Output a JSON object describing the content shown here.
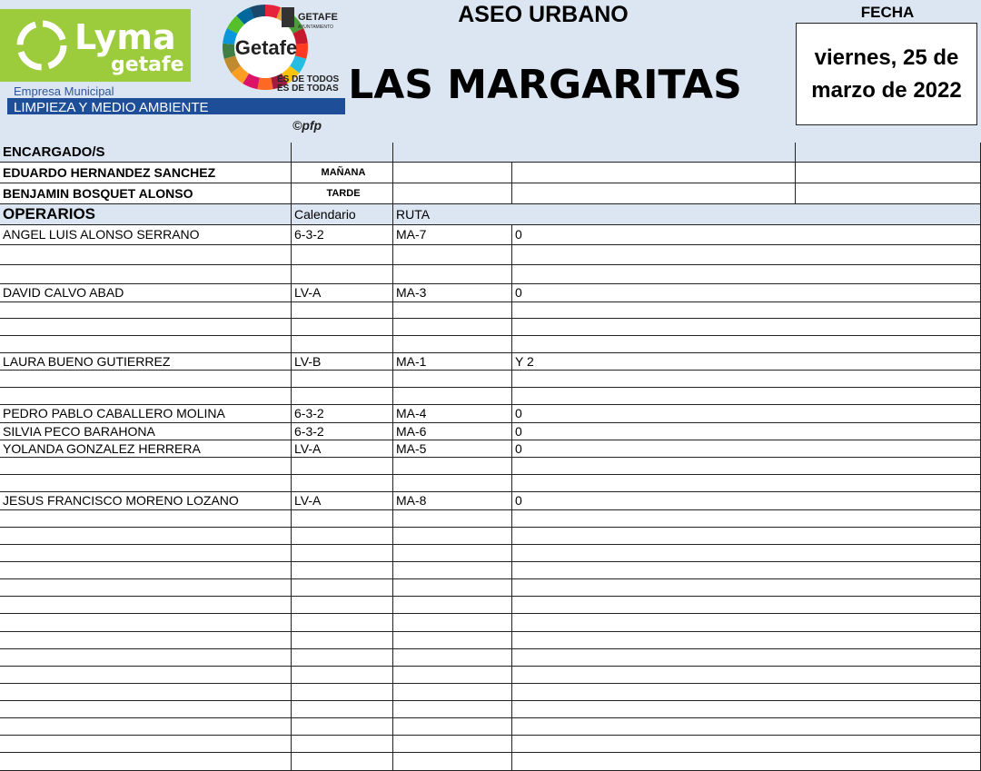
{
  "header": {
    "logo": {
      "brand": "Lyma",
      "brand_sub": "getafe",
      "seal": "Getafe",
      "city": "GETAFE",
      "city_sub": "AYUNTAMIENTO",
      "motto_1": "ES DE TODOS",
      "motto_2": "ES DE TODAS",
      "company": "Empresa Municipal",
      "department": "LIMPIEZA Y MEDIO AMBIENTE",
      "credit": "©pfp"
    },
    "service": "ASEO URBANO",
    "location": "LAS MARGARITAS",
    "date_label": "FECHA",
    "date": "viernes, 25 de marzo de 2022"
  },
  "supervisors": {
    "label": "ENCARGADO/S",
    "rows": [
      {
        "name": "EDUARDO HERNANDEZ SANCHEZ",
        "shift": "MAÑANA"
      },
      {
        "name": "BENJAMIN BOSQUET ALONSO",
        "shift": "TARDE"
      }
    ]
  },
  "operators": {
    "columns": [
      "OPERARIOS",
      "Calendario",
      "RUTA"
    ],
    "rows": [
      {
        "name": "ANGEL LUIS ALONSO SERRANO",
        "calendar": "6-3-2",
        "route": "MA-7",
        "note": "0"
      },
      {
        "name": "DAVID CALVO ABAD",
        "calendar": "LV-A",
        "route": "MA-3",
        "note": "0"
      },
      {
        "name": "LAURA BUENO GUTIERREZ",
        "calendar": "LV-B",
        "route": "MA-1",
        "note": "Y 2"
      },
      {
        "name": "PEDRO PABLO CABALLERO MOLINA",
        "calendar": "6-3-2",
        "route": "MA-4",
        "note": "0"
      },
      {
        "name": "SILVIA PECO BARAHONA",
        "calendar": "6-3-2",
        "route": "MA-6",
        "note": "0"
      },
      {
        "name": "YOLANDA GONZALEZ HERRERA",
        "calendar": "LV-A",
        "route": "MA-5",
        "note": "0"
      },
      {
        "name": "JESUS FRANCISCO MORENO LOZANO",
        "calendar": "LV-A",
        "route": "MA-8",
        "note": "0"
      }
    ]
  }
}
